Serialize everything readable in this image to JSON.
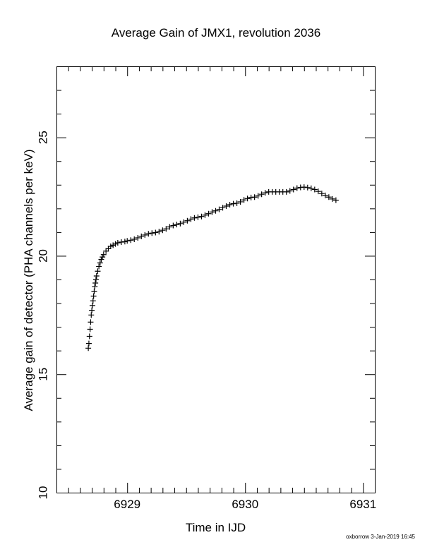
{
  "chart_data": {
    "type": "scatter",
    "title": "Average Gain of JMX1, revolution 2036",
    "xlabel": "Time in IJD",
    "ylabel": "Average gain of detector (PHA channels per keV)",
    "xlim": [
      6928.4,
      6931.1
    ],
    "ylim": [
      10,
      28
    ],
    "xticks": [
      6929,
      6930,
      6931
    ],
    "yticks": [
      10,
      15,
      20,
      25
    ],
    "grid": false,
    "marker": "+",
    "series": [
      {
        "points": [
          [
            6928.67,
            16.1
          ],
          [
            6928.675,
            16.3
          ],
          [
            6928.68,
            16.6
          ],
          [
            6928.685,
            16.9
          ],
          [
            6928.69,
            17.2
          ],
          [
            6928.695,
            17.5
          ],
          [
            6928.7,
            17.7
          ],
          [
            6928.705,
            17.9
          ],
          [
            6928.71,
            18.1
          ],
          [
            6928.715,
            18.3
          ],
          [
            6928.72,
            18.5
          ],
          [
            6928.725,
            18.7
          ],
          [
            6928.73,
            18.85
          ],
          [
            6928.735,
            19.0
          ],
          [
            6928.74,
            19.15
          ],
          [
            6928.75,
            19.35
          ],
          [
            6928.76,
            19.55
          ],
          [
            6928.77,
            19.7
          ],
          [
            6928.78,
            19.85
          ],
          [
            6928.79,
            19.95
          ],
          [
            6928.8,
            20.05
          ],
          [
            6928.82,
            20.2
          ],
          [
            6928.84,
            20.3
          ],
          [
            6928.86,
            20.4
          ],
          [
            6928.88,
            20.45
          ],
          [
            6928.9,
            20.5
          ],
          [
            6928.92,
            20.55
          ],
          [
            6928.95,
            20.58
          ],
          [
            6928.98,
            20.6
          ],
          [
            6929.0,
            20.63
          ],
          [
            6929.03,
            20.66
          ],
          [
            6929.06,
            20.7
          ],
          [
            6929.09,
            20.76
          ],
          [
            6929.12,
            20.82
          ],
          [
            6929.15,
            20.88
          ],
          [
            6929.18,
            20.93
          ],
          [
            6929.21,
            20.96
          ],
          [
            6929.24,
            20.98
          ],
          [
            6929.27,
            21.02
          ],
          [
            6929.3,
            21.08
          ],
          [
            6929.33,
            21.14
          ],
          [
            6929.36,
            21.22
          ],
          [
            6929.39,
            21.28
          ],
          [
            6929.42,
            21.32
          ],
          [
            6929.45,
            21.36
          ],
          [
            6929.48,
            21.42
          ],
          [
            6929.51,
            21.48
          ],
          [
            6929.54,
            21.55
          ],
          [
            6929.57,
            21.6
          ],
          [
            6929.6,
            21.63
          ],
          [
            6929.63,
            21.66
          ],
          [
            6929.66,
            21.72
          ],
          [
            6929.69,
            21.78
          ],
          [
            6929.72,
            21.85
          ],
          [
            6929.75,
            21.9
          ],
          [
            6929.78,
            21.96
          ],
          [
            6929.81,
            22.03
          ],
          [
            6929.84,
            22.1
          ],
          [
            6929.87,
            22.16
          ],
          [
            6929.9,
            22.2
          ],
          [
            6929.93,
            22.22
          ],
          [
            6929.96,
            22.28
          ],
          [
            6929.99,
            22.36
          ],
          [
            6930.02,
            22.42
          ],
          [
            6930.05,
            22.46
          ],
          [
            6930.08,
            22.48
          ],
          [
            6930.11,
            22.53
          ],
          [
            6930.14,
            22.6
          ],
          [
            6930.17,
            22.66
          ],
          [
            6930.2,
            22.7
          ],
          [
            6930.23,
            22.7
          ],
          [
            6930.26,
            22.7
          ],
          [
            6930.29,
            22.7
          ],
          [
            6930.32,
            22.7
          ],
          [
            6930.35,
            22.7
          ],
          [
            6930.38,
            22.74
          ],
          [
            6930.41,
            22.8
          ],
          [
            6930.44,
            22.86
          ],
          [
            6930.47,
            22.89
          ],
          [
            6930.5,
            22.9
          ],
          [
            6930.53,
            22.88
          ],
          [
            6930.56,
            22.85
          ],
          [
            6930.59,
            22.8
          ],
          [
            6930.62,
            22.72
          ],
          [
            6930.65,
            22.63
          ],
          [
            6930.68,
            22.55
          ],
          [
            6930.71,
            22.48
          ],
          [
            6930.74,
            22.4
          ],
          [
            6930.77,
            22.35
          ]
        ]
      }
    ]
  },
  "footer": "oxborrow  3-Jan-2019 16:45"
}
